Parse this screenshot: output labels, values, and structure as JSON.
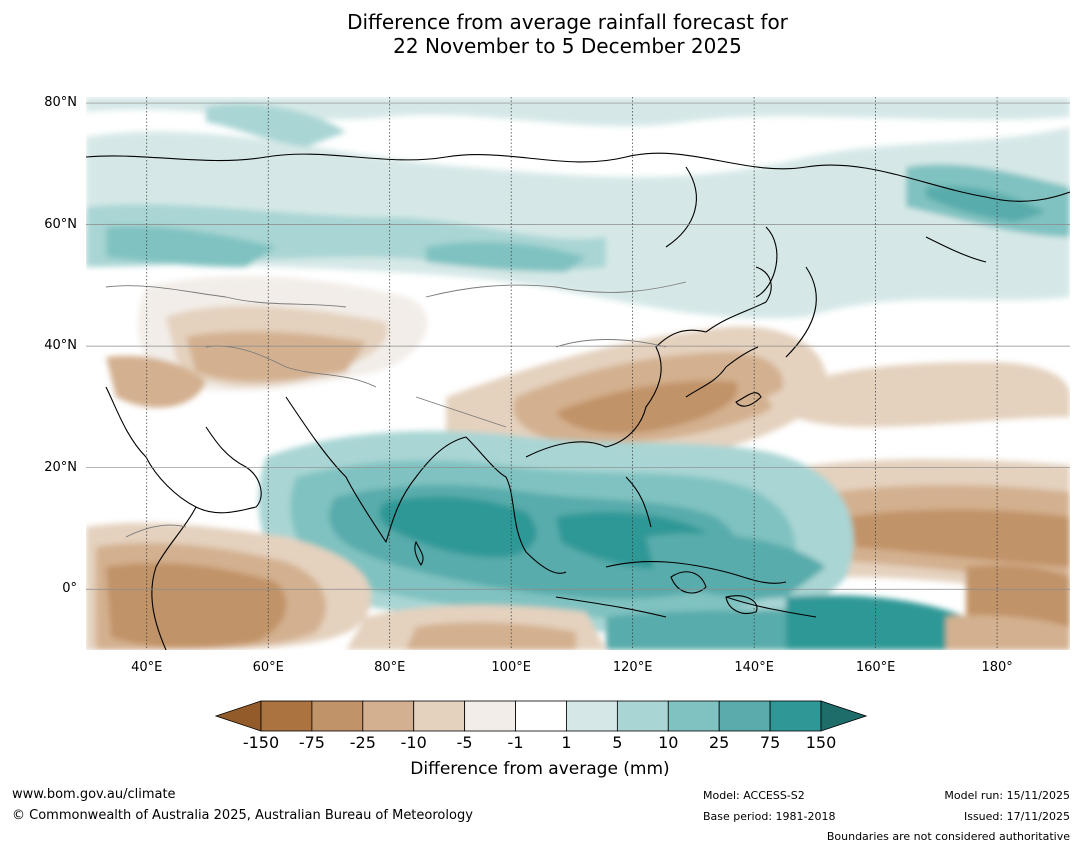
{
  "title": {
    "line1": "Difference from average rainfall forecast for",
    "line2": "22 November to 5 December 2025"
  },
  "map": {
    "lon_range": [
      30,
      192
    ],
    "lat_range": [
      -10,
      81
    ],
    "lat_ticks": [
      {
        "value": 80,
        "label": "80°N"
      },
      {
        "value": 60,
        "label": "60°N"
      },
      {
        "value": 40,
        "label": "40°N"
      },
      {
        "value": 20,
        "label": "20°N"
      },
      {
        "value": 0,
        "label": "0°"
      }
    ],
    "lon_ticks": [
      {
        "value": 40,
        "label": "40°E"
      },
      {
        "value": 60,
        "label": "60°E"
      },
      {
        "value": 80,
        "label": "80°E"
      },
      {
        "value": 100,
        "label": "100°E"
      },
      {
        "value": 120,
        "label": "120°E"
      },
      {
        "value": 140,
        "label": "140°E"
      },
      {
        "value": 160,
        "label": "160°E"
      },
      {
        "value": 180,
        "label": "180°"
      }
    ],
    "grid": true
  },
  "colorbar": {
    "title": "Difference from average (mm)",
    "labels": [
      "-150",
      "-75",
      "-25",
      "-10",
      "-5",
      "-1",
      "1",
      "5",
      "10",
      "25",
      "75",
      "150"
    ],
    "colors": [
      "#aa733f",
      "#c19368",
      "#d3b08f",
      "#e4d1be",
      "#f2ede8",
      "#ffffff",
      "#d5e8e7",
      "#a9d5d4",
      "#80c2c1",
      "#59acab",
      "#2f9896"
    ],
    "under_color": "#945b2a",
    "over_color": "#1f6d6b"
  },
  "footer": {
    "website": "www.bom.gov.au/climate",
    "copyright": "© Commonwealth of Australia 2025, Australian Bureau of Meteorology",
    "model": "Model: ACCESS-S2",
    "base_period": "Base period: 1981-2018",
    "model_run": "Model run: 15/11/2025",
    "issued": "Issued: 17/11/2025",
    "disclaimer": "Boundaries are not considered authoritative"
  }
}
